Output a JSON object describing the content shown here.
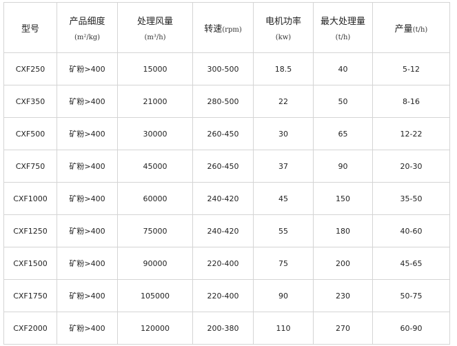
{
  "headers": {
    "model": "型号",
    "fineness": "产品细度",
    "fineness_unit": "(m²/kg)",
    "airflow": "处理风量",
    "airflow_unit": "(m³/h)",
    "speed": "转速",
    "speed_unit": "(rpm)",
    "power": "电机功率",
    "power_unit": "(kw)",
    "max_capacity": "最大处理量",
    "max_capacity_unit": "(t/h)",
    "output": "产量",
    "output_unit": "(t/h)"
  },
  "rows": [
    [
      "CXF250",
      "矿粉>400",
      "15000",
      "300-500",
      "18.5",
      "40",
      "5-12"
    ],
    [
      "CXF350",
      "矿粉>400",
      "21000",
      "280-500",
      "22",
      "50",
      "8-16"
    ],
    [
      "CXF500",
      "矿粉>400",
      "30000",
      "260-450",
      "30",
      "65",
      "12-22"
    ],
    [
      "CXF750",
      "矿粉>400",
      "45000",
      "260-450",
      "37",
      "90",
      "20-30"
    ],
    [
      "CXF1000",
      "矿粉>400",
      "60000",
      "240-420",
      "45",
      "150",
      "35-50"
    ],
    [
      "CXF1250",
      "矿粉>400",
      "75000",
      "240-420",
      "55",
      "180",
      "40-60"
    ],
    [
      "CXF1500",
      "矿粉>400",
      "90000",
      "220-400",
      "75",
      "200",
      "45-65"
    ],
    [
      "CXF1750",
      "矿粉>400",
      "105000",
      "220-400",
      "90",
      "230",
      "50-75"
    ],
    [
      "CXF2000",
      "矿粉>400",
      "120000",
      "200-380",
      "110",
      "270",
      "60-90"
    ]
  ]
}
